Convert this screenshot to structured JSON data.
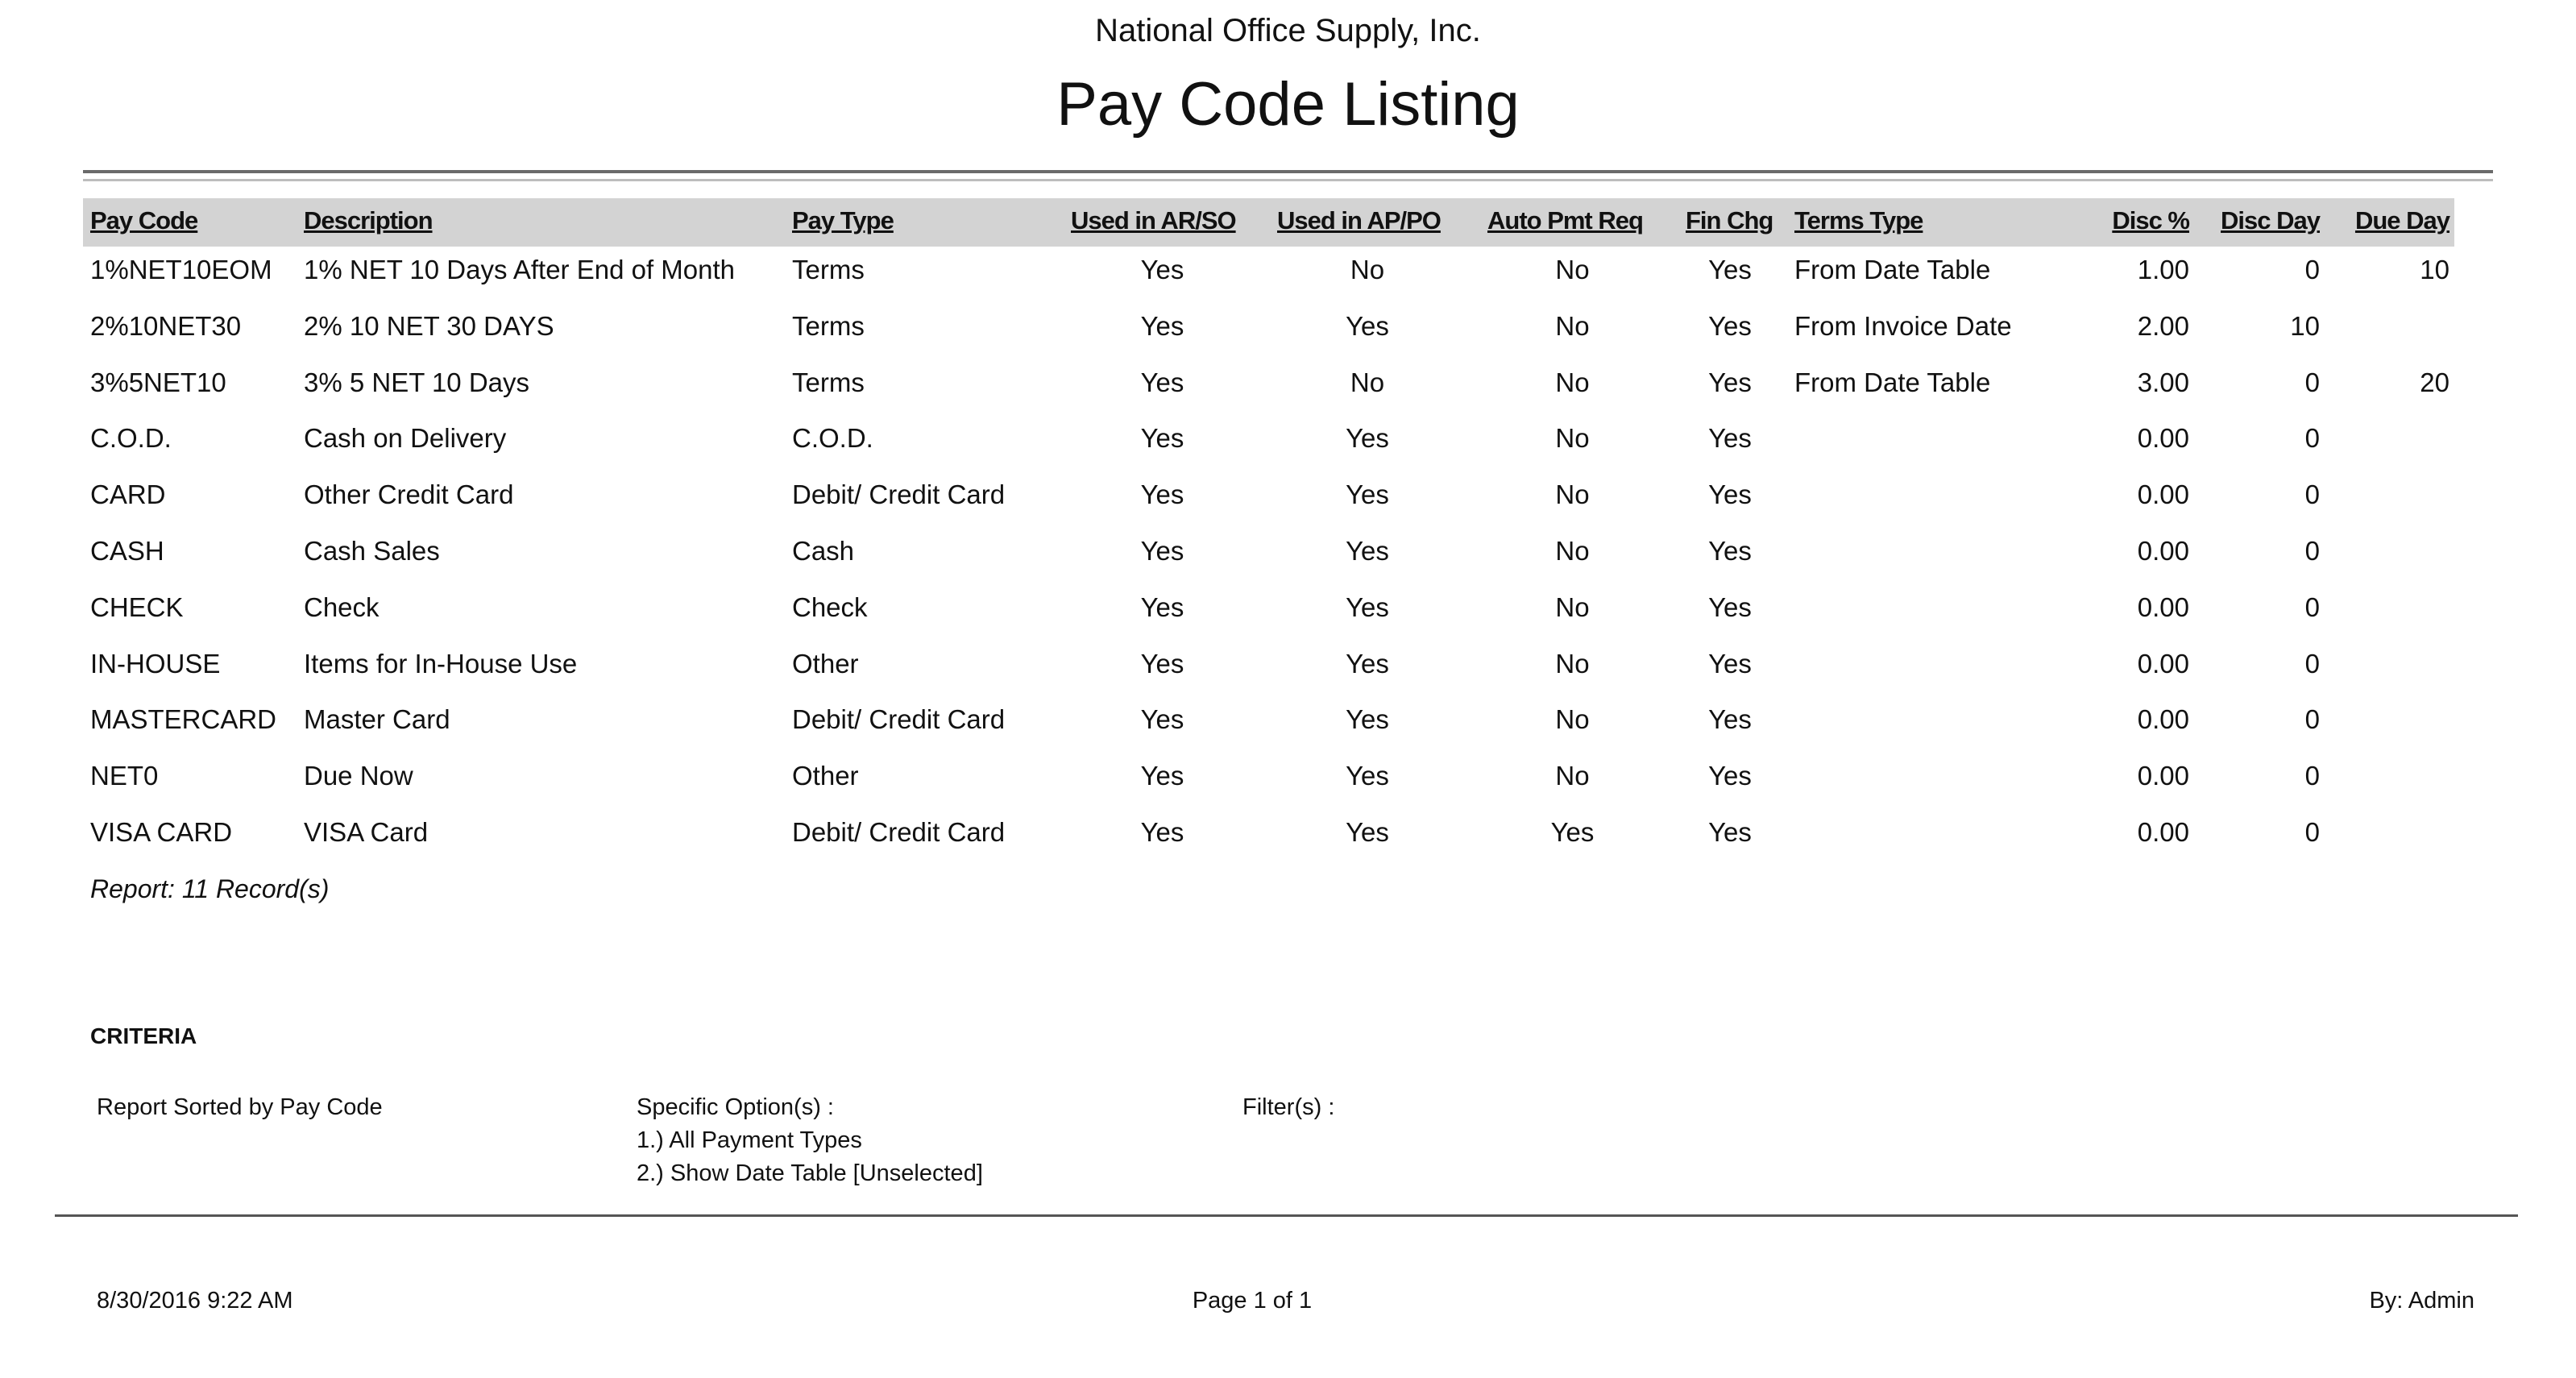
{
  "header": {
    "company": "National Office Supply, Inc.",
    "title": "Pay Code Listing"
  },
  "table": {
    "columns": [
      "Pay Code",
      "Description",
      "Pay Type",
      "Used in AR/SO",
      "Used in AP/PO",
      "Auto Pmt Req",
      "Fin Chg",
      "Terms Type",
      "Disc %",
      "Disc Day",
      "Due Day"
    ],
    "rows": [
      [
        "1%NET10EOM",
        "1% NET 10 Days After End of Month",
        "Terms",
        "Yes",
        "No",
        "No",
        "Yes",
        "From Date Table",
        "1.00",
        "0",
        "10"
      ],
      [
        "2%10NET30",
        "2% 10 NET 30 DAYS",
        "Terms",
        "Yes",
        "Yes",
        "No",
        "Yes",
        "From Invoice Date",
        "2.00",
        "10",
        ""
      ],
      [
        "3%5NET10",
        "3% 5 NET 10 Days",
        "Terms",
        "Yes",
        "No",
        "No",
        "Yes",
        "From Date Table",
        "3.00",
        "0",
        "20"
      ],
      [
        "C.O.D.",
        "Cash on Delivery",
        "C.O.D.",
        "Yes",
        "Yes",
        "No",
        "Yes",
        "",
        "0.00",
        "0",
        ""
      ],
      [
        "CARD",
        "Other Credit Card",
        "Debit/ Credit Card",
        "Yes",
        "Yes",
        "No",
        "Yes",
        "",
        "0.00",
        "0",
        ""
      ],
      [
        "CASH",
        "Cash Sales",
        "Cash",
        "Yes",
        "Yes",
        "No",
        "Yes",
        "",
        "0.00",
        "0",
        ""
      ],
      [
        "CHECK",
        "Check",
        "Check",
        "Yes",
        "Yes",
        "No",
        "Yes",
        "",
        "0.00",
        "0",
        ""
      ],
      [
        "IN-HOUSE",
        "Items for In-House Use",
        "Other",
        "Yes",
        "Yes",
        "No",
        "Yes",
        "",
        "0.00",
        "0",
        ""
      ],
      [
        "MASTERCARD",
        "Master Card",
        "Debit/ Credit Card",
        "Yes",
        "Yes",
        "No",
        "Yes",
        "",
        "0.00",
        "0",
        ""
      ],
      [
        "NET0",
        "Due Now",
        "Other",
        "Yes",
        "Yes",
        "No",
        "Yes",
        "",
        "0.00",
        "0",
        ""
      ],
      [
        "VISA CARD",
        "VISA Card",
        "Debit/ Credit Card",
        "Yes",
        "Yes",
        "Yes",
        "Yes",
        "",
        "0.00",
        "0",
        ""
      ]
    ],
    "record_count": "Report: 11 Record(s)"
  },
  "criteria": {
    "heading": "CRITERIA",
    "sorted": "Report Sorted by Pay Code",
    "options_label": "Specific Option(s) :",
    "options": [
      "1.) All Payment Types",
      "2.) Show Date Table [Unselected]"
    ],
    "filters_label": "Filter(s) :"
  },
  "footer": {
    "datetime": "8/30/2016 9:22 AM",
    "page": "Page 1 of 1",
    "by": "By: Admin"
  }
}
